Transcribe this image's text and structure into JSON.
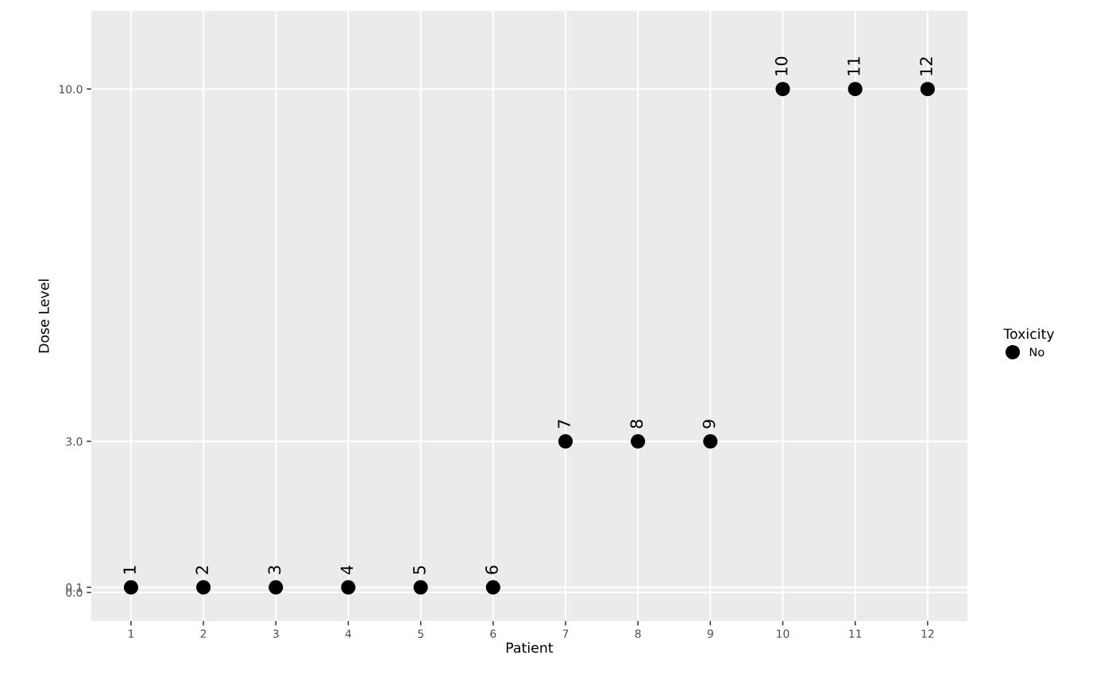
{
  "chart_data": {
    "type": "scatter",
    "xlabel": "Patient",
    "ylabel": "Dose Level",
    "legend_title": "Toxicity",
    "x": [
      1,
      2,
      3,
      4,
      5,
      6,
      7,
      8,
      9,
      10,
      11,
      12
    ],
    "series": [
      {
        "name": "No",
        "color": "#000000",
        "values": [
          0.1,
          0.1,
          0.1,
          0.1,
          0.1,
          0.1,
          3.0,
          3.0,
          3.0,
          10.0,
          10.0,
          10.0
        ]
      }
    ],
    "xlim": [
      0.45,
      12.55
    ],
    "xticks": [
      1,
      2,
      3,
      4,
      5,
      6,
      7,
      8,
      9,
      10,
      11,
      12
    ],
    "ylim": [
      -0.57,
      11.55
    ],
    "yticks": [
      {
        "value": 0,
        "label": "0.0"
      },
      0.1,
      {
        "value": 3,
        "label": "3.0"
      },
      {
        "value": 10,
        "label": "10.0"
      }
    ],
    "grid": true,
    "legend": "right",
    "marker": "circle",
    "annotations": [
      {
        "text": "1",
        "x": 1,
        "y": 0.1
      },
      {
        "text": "2",
        "x": 2,
        "y": 0.1
      },
      {
        "text": "3",
        "x": 3,
        "y": 0.1
      },
      {
        "text": "4",
        "x": 4,
        "y": 0.1
      },
      {
        "text": "5",
        "x": 5,
        "y": 0.1
      },
      {
        "text": "6",
        "x": 6,
        "y": 0.1
      },
      {
        "text": "7",
        "x": 7,
        "y": 3.0
      },
      {
        "text": "8",
        "x": 8,
        "y": 3.0
      },
      {
        "text": "9",
        "x": 9,
        "y": 3.0
      },
      {
        "text": "10",
        "x": 10,
        "y": 10.0
      },
      {
        "text": "11",
        "x": 11,
        "y": 10.0
      },
      {
        "text": "12",
        "x": 12,
        "y": 10.0
      }
    ]
  }
}
